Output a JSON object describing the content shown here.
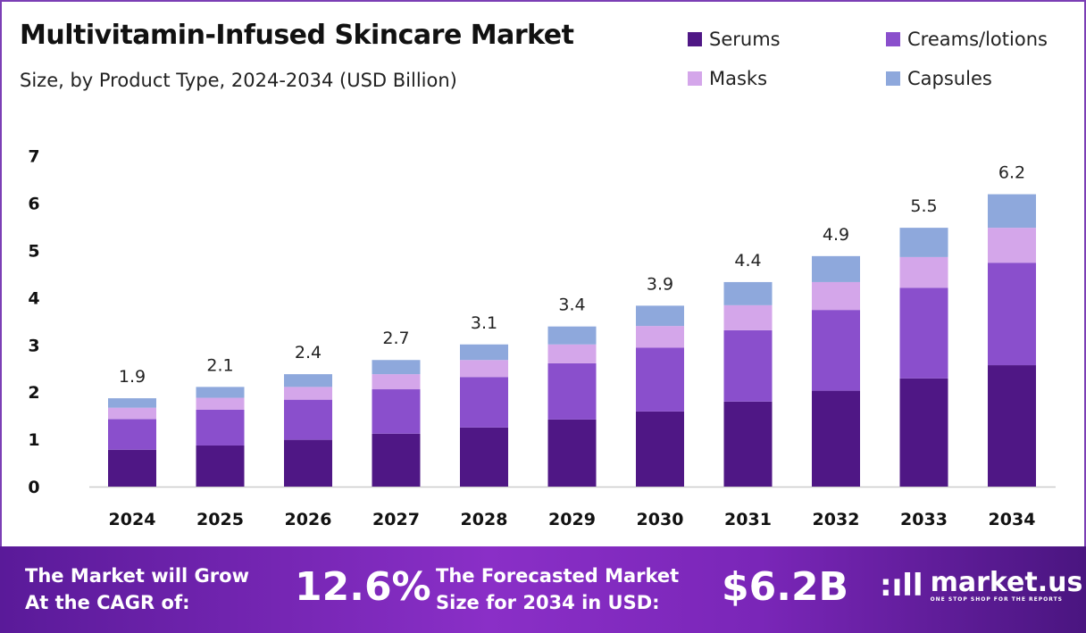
{
  "header": {
    "title": "Multivitamin-Infused Skincare Market",
    "subtitle": "Size, by Product Type, 2024-2034 (USD Billion)"
  },
  "chart_data": {
    "type": "bar",
    "stacked": true,
    "title": "Multivitamin-Infused Skincare Market",
    "subtitle": "Size, by Product Type, 2024-2034 (USD Billion)",
    "categories": [
      "2024",
      "2025",
      "2026",
      "2027",
      "2028",
      "2029",
      "2030",
      "2031",
      "2032",
      "2033",
      "2034"
    ],
    "series": [
      {
        "name": "Serums",
        "color": "#4f1785",
        "values": [
          0.78,
          0.87,
          0.99,
          1.12,
          1.25,
          1.42,
          1.59,
          1.8,
          2.03,
          2.29,
          2.57
        ]
      },
      {
        "name": "Creams/lotions",
        "color": "#8a4fcc",
        "values": [
          0.65,
          0.76,
          0.85,
          0.94,
          1.07,
          1.19,
          1.35,
          1.51,
          1.71,
          1.92,
          2.17
        ]
      },
      {
        "name": "Masks",
        "color": "#d4a6ea",
        "values": [
          0.24,
          0.25,
          0.27,
          0.32,
          0.36,
          0.4,
          0.46,
          0.53,
          0.59,
          0.65,
          0.74
        ]
      },
      {
        "name": "Capsules",
        "color": "#8ea8dc",
        "values": [
          0.2,
          0.23,
          0.27,
          0.3,
          0.33,
          0.38,
          0.43,
          0.49,
          0.55,
          0.62,
          0.71
        ]
      }
    ],
    "totals": [
      "1.9",
      "2.1",
      "2.4",
      "2.7",
      "3.1",
      "3.4",
      "3.9",
      "4.4",
      "4.9",
      "5.5",
      "6.2"
    ],
    "yticks": [
      "0",
      "1",
      "2",
      "3",
      "4",
      "5",
      "6",
      "7"
    ],
    "ylim": [
      0,
      7
    ],
    "grid": false,
    "legend": "top-right"
  },
  "footer": {
    "cagr_label_1": "The Market will Grow",
    "cagr_label_2": "At the CAGR of:",
    "cagr_value": "12.6%",
    "forecast_label_1": "The Forecasted Market",
    "forecast_label_2": "Size for 2034 in USD:",
    "forecast_value": "$6.2B",
    "logo_name": "market.us",
    "logo_tagline": "ONE STOP SHOP FOR THE REPORTS"
  }
}
